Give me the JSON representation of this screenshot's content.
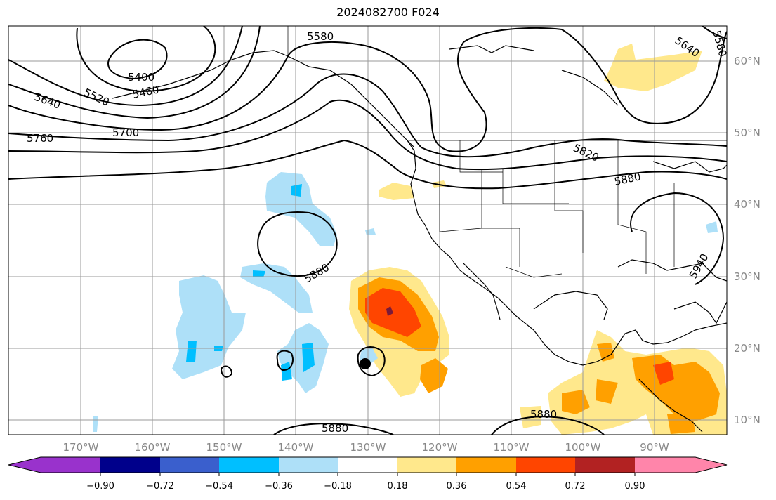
{
  "title": "2024082700 F024",
  "map": {
    "lon_range": [
      -180,
      -80
    ],
    "lat_range": [
      8,
      65
    ],
    "lat_labels": [
      "10°N",
      "20°N",
      "30°N",
      "40°N",
      "50°N",
      "60°N"
    ],
    "lon_labels": [
      "170°W",
      "160°W",
      "150°W",
      "140°W",
      "130°W",
      "120°W",
      "110°W",
      "100°W",
      "90°W"
    ],
    "contour_labels": [
      "5580",
      "5640",
      "5400",
      "5460",
      "5520",
      "5640",
      "5700",
      "5760",
      "5820",
      "5880",
      "5880",
      "5940",
      "5880",
      "5880",
      "5580"
    ],
    "colors": {
      "contour": "#000000",
      "grid": "#9a9a9a",
      "axis_text": "#888888"
    }
  },
  "colorbar": {
    "ticks": [
      "−0.90",
      "−0.72",
      "−0.54",
      "−0.36",
      "−0.18",
      "0.18",
      "0.36",
      "0.54",
      "0.72",
      "0.90"
    ],
    "colors": [
      "#9932cc",
      "#00008b",
      "#3a5fcd",
      "#00bfff",
      "#aee0f8",
      "#ffffff",
      "#ffe88c",
      "#ffa000",
      "#ff4500",
      "#b22222",
      "#ff85aa"
    ]
  }
}
